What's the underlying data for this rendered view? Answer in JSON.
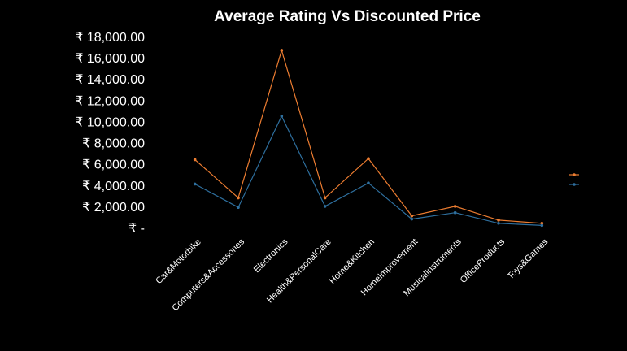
{
  "chart_data": {
    "type": "line",
    "title": "Average Rating Vs Discounted Price",
    "xlabel": "",
    "ylabel": "",
    "categories": [
      "Car&Motorbike",
      "Computers&Accessories",
      "Electronics",
      "Health&PersonalCare",
      "Home&Kitchen",
      "HomeImprovement",
      "MusicalInstruments",
      "OfficeProducts",
      "Toys&Games"
    ],
    "series": [
      {
        "name": "",
        "color": "#ed7d31",
        "values": [
          6400,
          2800,
          16700,
          2800,
          6500,
          1100,
          2000,
          700,
          400
        ]
      },
      {
        "name": "",
        "color": "#2e6f9e",
        "values": [
          4100,
          1900,
          10500,
          2000,
          4200,
          800,
          1400,
          400,
          200
        ]
      }
    ],
    "ylim": [
      0,
      18000
    ],
    "yticks": [
      {
        "value": 18000,
        "label": "₹ 18,000.00"
      },
      {
        "value": 16000,
        "label": "₹ 16,000.00"
      },
      {
        "value": 14000,
        "label": "₹ 14,000.00"
      },
      {
        "value": 12000,
        "label": "₹ 12,000.00"
      },
      {
        "value": 10000,
        "label": "₹ 10,000.00"
      },
      {
        "value": 8000,
        "label": "₹ 8,000.00"
      },
      {
        "value": 6000,
        "label": "₹ 6,000.00"
      },
      {
        "value": 4000,
        "label": "₹ 4,000.00"
      },
      {
        "value": 2000,
        "label": "₹ 2,000.00"
      },
      {
        "value": 0,
        "label": "₹ -"
      }
    ],
    "grid": false,
    "legend": "right"
  }
}
